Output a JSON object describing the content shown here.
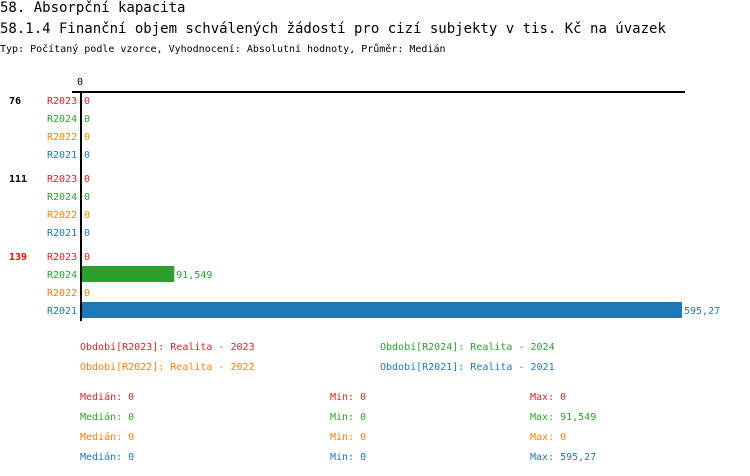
{
  "header": {
    "section": "58. Absorpční kapacita",
    "title": "58.1.4 Finanční objem schválených žádostí pro cizí subjekty v tis. Kč na úvazek",
    "subtitle": "Typ: Počítaný podle vzorce, Vyhodnocení: Absolutní hodnoty, Průměr: Medián"
  },
  "chart_data": {
    "type": "bar",
    "orientation": "horizontal",
    "x_ticks": [
      "0"
    ],
    "xlim": [
      0,
      595.27
    ],
    "groups": [
      {
        "label": "76",
        "label_color": "#000000",
        "bars": [
          {
            "series": "R2023",
            "value": 0,
            "label": "0"
          },
          {
            "series": "R2024",
            "value": 0,
            "label": "0"
          },
          {
            "series": "R2022",
            "value": 0,
            "label": "0"
          },
          {
            "series": "R2021",
            "value": 0,
            "label": "0"
          }
        ]
      },
      {
        "label": "111",
        "label_color": "#000000",
        "bars": [
          {
            "series": "R2023",
            "value": 0,
            "label": "0"
          },
          {
            "series": "R2024",
            "value": 0,
            "label": "0"
          },
          {
            "series": "R2022",
            "value": 0,
            "label": "0"
          },
          {
            "series": "R2021",
            "value": 0,
            "label": "0"
          }
        ]
      },
      {
        "label": "139",
        "label_color": "#ff0000",
        "bars": [
          {
            "series": "R2023",
            "value": 0,
            "label": "0"
          },
          {
            "series": "R2024",
            "value": 91.549,
            "label": "91,549"
          },
          {
            "series": "R2022",
            "value": 0,
            "label": "0"
          },
          {
            "series": "R2021",
            "value": 595.27,
            "label": "595,27"
          }
        ]
      }
    ],
    "series": [
      {
        "name": "R2023",
        "color": "#d62728",
        "legend": "Období[R2023]: Realita - 2023",
        "median": "Medián: 0",
        "min": "Min: 0",
        "max": "Max: 0"
      },
      {
        "name": "R2024",
        "color": "#2ca02c",
        "legend": "Období[R2024]: Realita - 2024",
        "median": "Medián: 0",
        "min": "Min: 0",
        "max": "Max: 91,549"
      },
      {
        "name": "R2022",
        "color": "#ff7f0e",
        "legend": "Období[R2022]: Realita - 2022",
        "median": "Medián: 0",
        "min": "Min: 0",
        "max": "Max: 0"
      },
      {
        "name": "R2021",
        "color": "#1f77b4",
        "legend": "Období[R2021]: Realita - 2021",
        "median": "Medián: 0",
        "min": "Min: 0",
        "max": "Max: 595,27"
      }
    ]
  }
}
